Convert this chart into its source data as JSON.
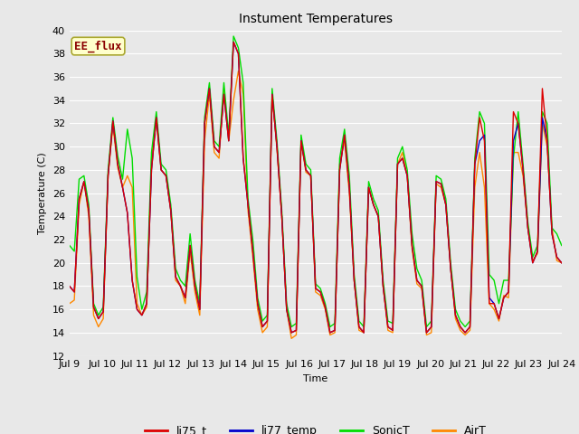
{
  "title": "Instument Temperatures",
  "xlabel": "Time",
  "ylabel": "Temperature (C)",
  "ylim": [
    12,
    40
  ],
  "yticks": [
    12,
    14,
    16,
    18,
    20,
    22,
    24,
    26,
    28,
    30,
    32,
    34,
    36,
    38,
    40
  ],
  "x_labels": [
    "Jul 9",
    "Jul 10",
    "Jul 11",
    "Jul 12",
    "Jul 13",
    "Jul 14",
    "Jul 15",
    "Jul 16",
    "Jul 17",
    "Jul 18",
    "Jul 19",
    "Jul 20",
    "Jul 21",
    "Jul 22",
    "Jul 23",
    "Jul 24"
  ],
  "x_positions": [
    0,
    1,
    2,
    3,
    4,
    5,
    6,
    7,
    8,
    9,
    10,
    11,
    12,
    13,
    14,
    15
  ],
  "annotation_text": "EE_flux",
  "annotation_color": "#8B0000",
  "bg_color": "#e8e8e8",
  "plot_bg_color": "#e8e8e8",
  "grid_color": "#ffffff",
  "colors": {
    "li75_t": "#dd0000",
    "li77_temp": "#0000cc",
    "SonicT": "#00dd00",
    "AirT": "#ff8800"
  },
  "series": {
    "li75_t": [
      18.0,
      17.5,
      25.5,
      27.0,
      24.5,
      16.2,
      15.2,
      15.8,
      27.5,
      32.2,
      28.5,
      26.5,
      24.3,
      18.5,
      16.0,
      15.5,
      16.5,
      28.0,
      32.5,
      28.0,
      27.5,
      24.5,
      18.8,
      18.0,
      17.0,
      21.5,
      18.0,
      16.0,
      32.0,
      35.0,
      30.0,
      29.5,
      34.5,
      30.5,
      39.0,
      38.0,
      29.0,
      25.0,
      21.0,
      16.5,
      14.5,
      15.0,
      34.5,
      30.0,
      24.0,
      16.0,
      14.0,
      14.2,
      30.5,
      28.0,
      27.5,
      17.8,
      17.5,
      16.2,
      14.0,
      14.2,
      28.0,
      31.0,
      26.5,
      18.5,
      14.5,
      14.0,
      26.5,
      25.0,
      24.0,
      18.0,
      14.5,
      14.2,
      28.5,
      29.0,
      27.5,
      21.5,
      18.5,
      18.0,
      14.0,
      14.5,
      27.0,
      26.8,
      25.0,
      19.5,
      15.5,
      14.5,
      14.0,
      14.5,
      28.5,
      32.5,
      30.5,
      16.5,
      16.5,
      15.2,
      17.0,
      17.5,
      33.0,
      32.0,
      28.0,
      23.0,
      20.0,
      21.0,
      35.0,
      30.5,
      22.5,
      20.5,
      20.0
    ],
    "li77_temp": [
      18.0,
      17.5,
      25.5,
      27.0,
      24.5,
      16.2,
      15.2,
      15.8,
      27.5,
      32.2,
      28.5,
      26.5,
      24.3,
      18.5,
      16.0,
      15.5,
      16.5,
      28.0,
      32.5,
      28.0,
      27.5,
      24.5,
      18.8,
      18.0,
      17.0,
      21.5,
      18.0,
      16.0,
      32.0,
      35.0,
      30.0,
      29.5,
      34.5,
      30.5,
      39.0,
      38.0,
      29.0,
      25.0,
      21.0,
      16.5,
      14.5,
      15.0,
      34.5,
      30.0,
      24.0,
      16.0,
      14.0,
      14.2,
      30.5,
      28.0,
      27.5,
      17.8,
      17.5,
      16.2,
      14.0,
      14.2,
      28.0,
      31.0,
      26.5,
      18.5,
      14.5,
      14.0,
      26.5,
      25.0,
      24.0,
      18.0,
      14.5,
      14.2,
      28.5,
      29.0,
      27.5,
      21.5,
      18.5,
      18.0,
      14.0,
      14.5,
      27.0,
      26.8,
      25.0,
      19.5,
      15.5,
      14.5,
      14.0,
      14.5,
      28.5,
      30.5,
      31.0,
      17.0,
      16.5,
      15.2,
      17.0,
      17.5,
      30.5,
      32.0,
      28.0,
      23.0,
      20.0,
      21.0,
      32.5,
      30.5,
      22.5,
      20.5,
      20.0
    ],
    "SonicT": [
      21.5,
      21.0,
      27.2,
      27.5,
      25.0,
      16.5,
      15.5,
      16.2,
      28.0,
      32.5,
      29.2,
      27.2,
      31.5,
      29.0,
      18.8,
      16.0,
      17.5,
      29.5,
      33.0,
      28.5,
      28.0,
      25.0,
      19.5,
      18.5,
      18.0,
      22.5,
      18.5,
      16.5,
      32.5,
      35.5,
      30.5,
      30.0,
      35.5,
      31.0,
      39.5,
      38.5,
      35.5,
      25.5,
      22.0,
      17.0,
      15.0,
      15.5,
      35.0,
      30.5,
      24.5,
      16.5,
      14.5,
      14.8,
      31.0,
      28.5,
      28.0,
      18.2,
      17.8,
      16.5,
      14.5,
      14.8,
      29.0,
      31.5,
      27.5,
      19.0,
      15.0,
      14.5,
      27.0,
      25.5,
      24.5,
      18.5,
      15.0,
      14.8,
      29.0,
      30.0,
      28.0,
      22.5,
      19.5,
      18.5,
      14.5,
      15.0,
      27.5,
      27.2,
      25.5,
      20.0,
      16.0,
      15.0,
      14.5,
      15.0,
      29.0,
      33.0,
      32.0,
      19.0,
      18.5,
      16.5,
      18.5,
      18.5,
      29.0,
      33.0,
      28.5,
      23.5,
      20.5,
      21.5,
      33.0,
      32.0,
      23.0,
      22.5,
      21.5
    ],
    "AirT": [
      16.5,
      16.8,
      25.0,
      27.0,
      24.0,
      15.5,
      14.5,
      15.2,
      27.5,
      31.8,
      28.2,
      26.5,
      27.5,
      26.5,
      16.5,
      15.5,
      16.2,
      29.0,
      32.2,
      28.0,
      27.5,
      24.5,
      18.5,
      18.0,
      16.5,
      21.0,
      17.5,
      15.5,
      30.5,
      34.5,
      29.5,
      29.0,
      35.0,
      30.5,
      34.0,
      36.5,
      34.5,
      24.5,
      20.5,
      16.0,
      14.0,
      14.5,
      34.5,
      29.8,
      24.0,
      16.0,
      13.5,
      13.8,
      30.5,
      27.8,
      27.5,
      17.5,
      17.2,
      16.0,
      13.8,
      14.0,
      28.5,
      30.5,
      26.0,
      18.5,
      14.2,
      14.0,
      26.5,
      25.0,
      24.0,
      18.0,
      14.2,
      14.0,
      28.5,
      29.5,
      27.5,
      21.2,
      18.2,
      17.8,
      13.8,
      14.0,
      26.8,
      26.5,
      25.0,
      19.5,
      15.2,
      14.2,
      13.8,
      14.2,
      26.5,
      29.5,
      26.5,
      16.5,
      16.0,
      15.0,
      17.2,
      17.0,
      29.5,
      29.5,
      27.5,
      23.0,
      20.2,
      20.8,
      32.0,
      30.0,
      23.0,
      20.2,
      20.0
    ]
  },
  "linewidth": 1.0,
  "title_fontsize": 10,
  "axis_fontsize": 8,
  "tick_fontsize": 8,
  "legend_fontsize": 9
}
